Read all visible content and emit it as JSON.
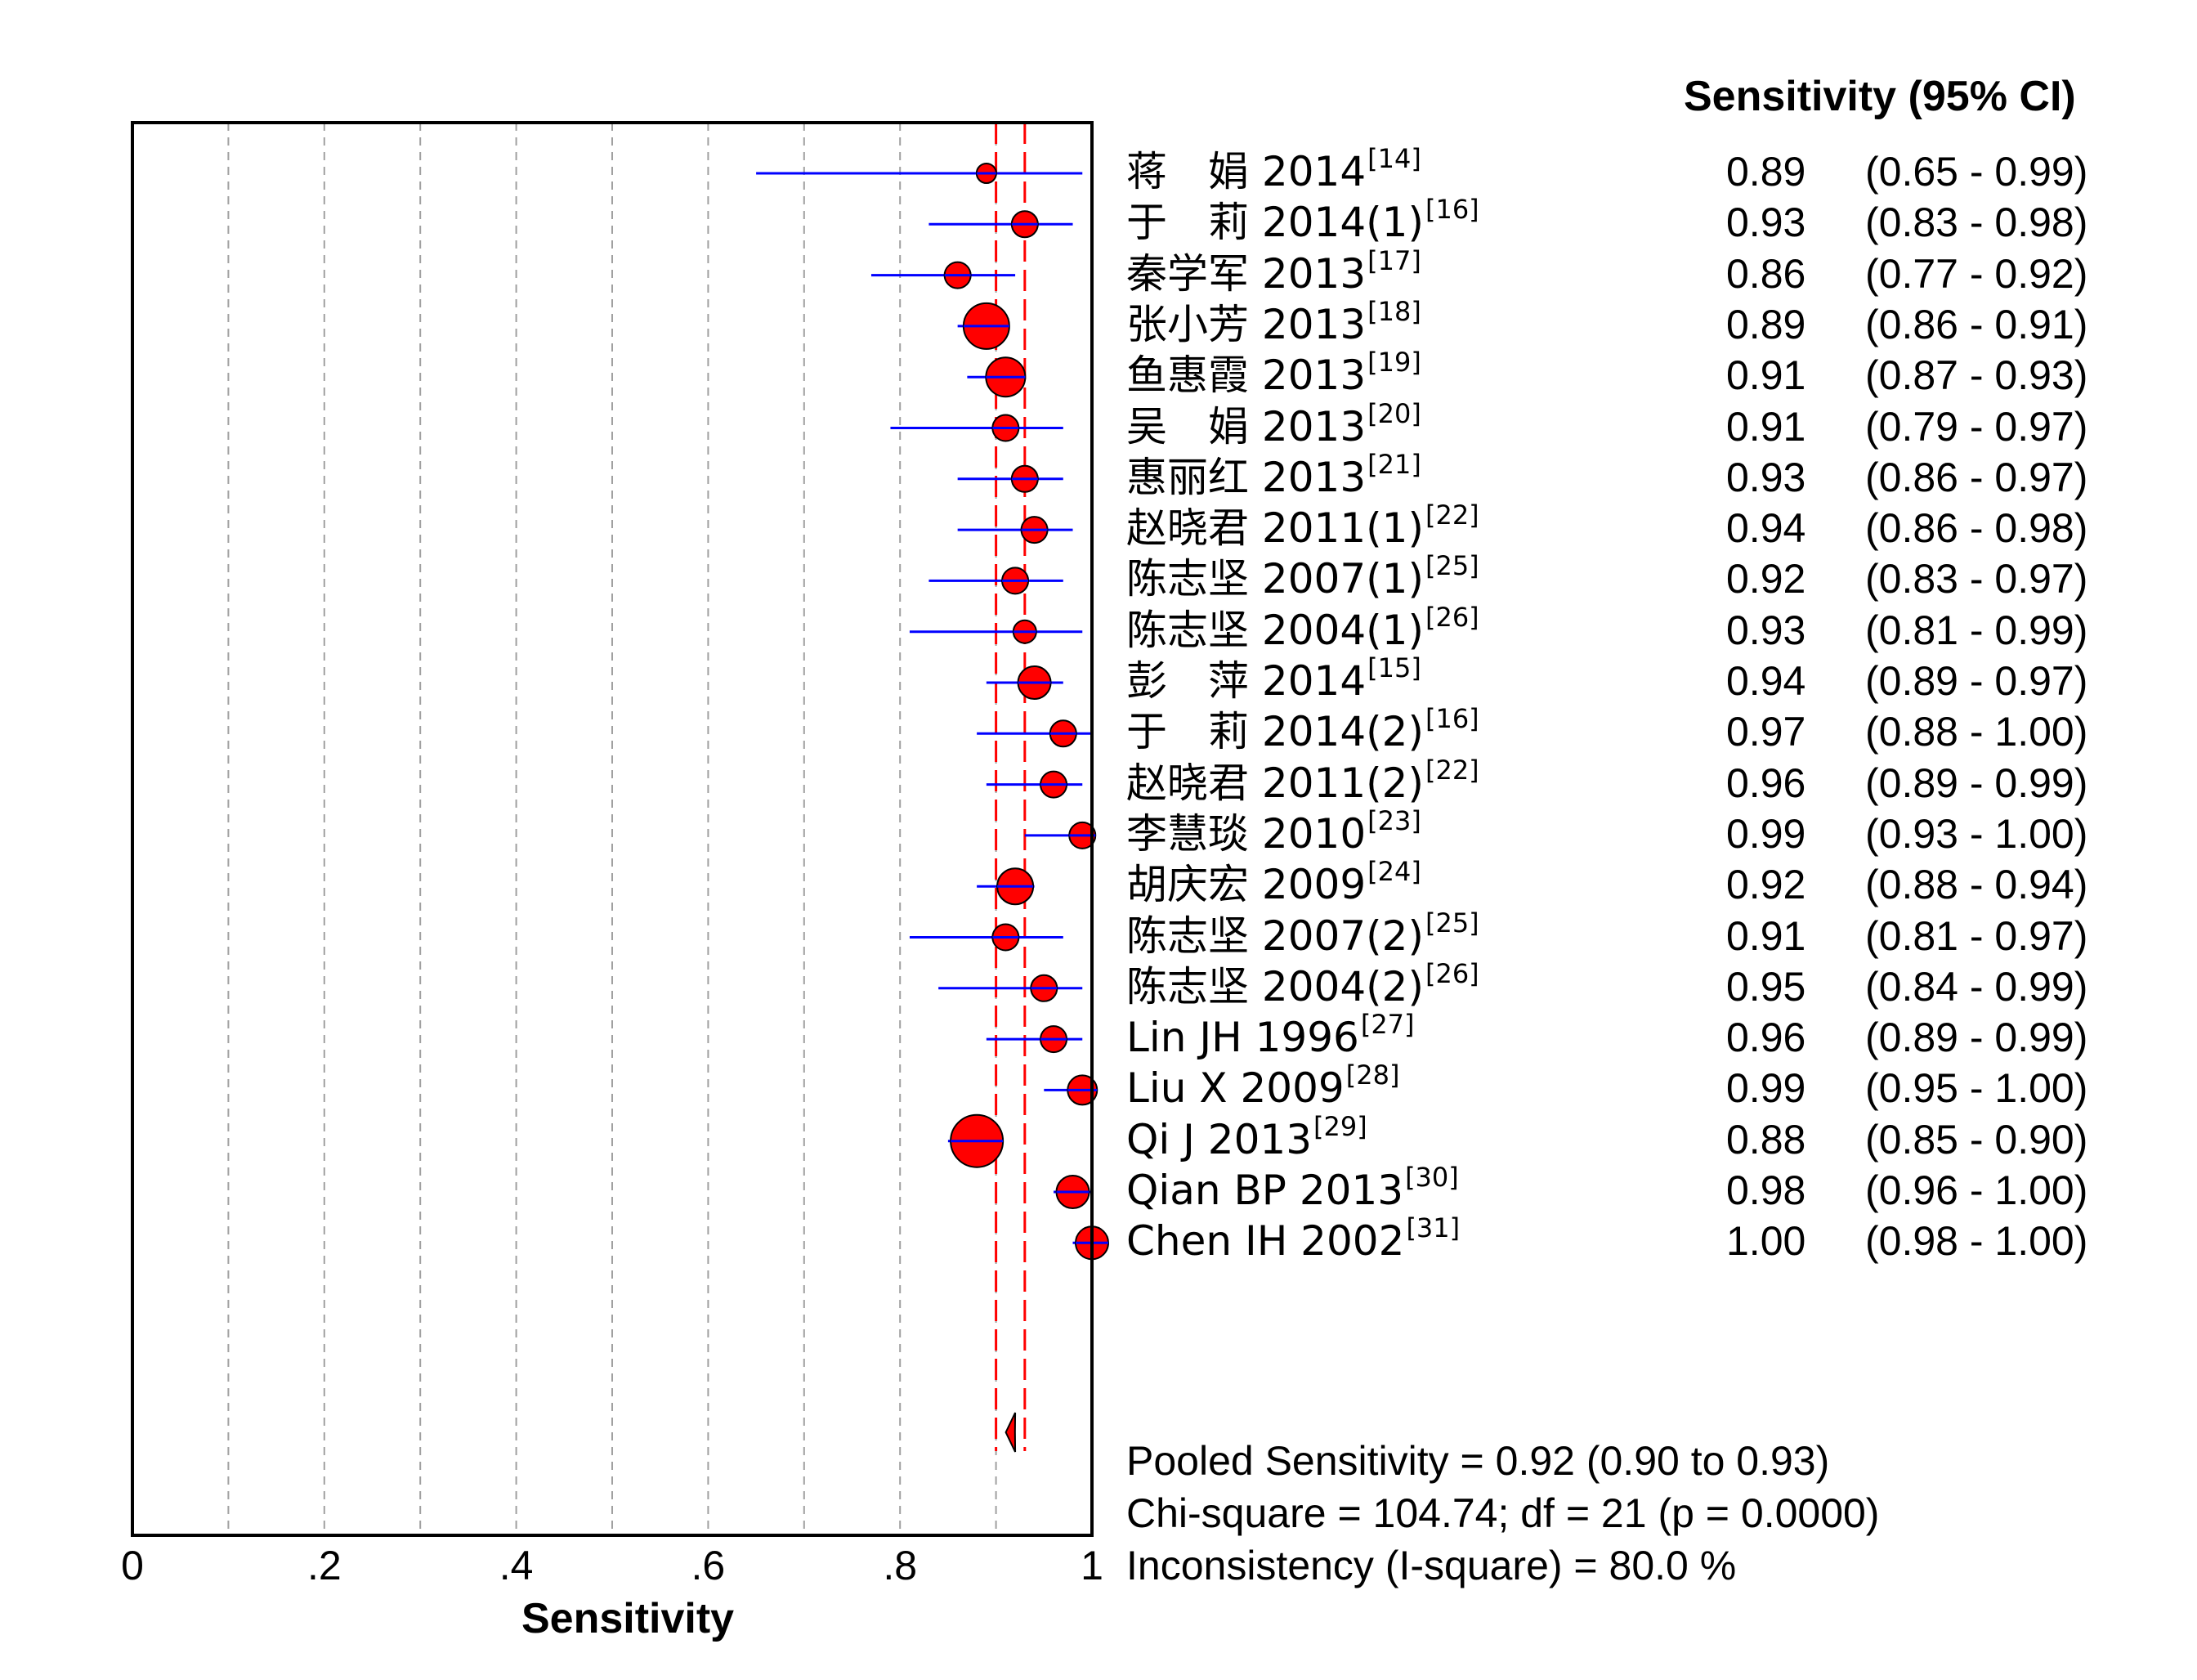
{
  "chart_data": {
    "type": "forest",
    "xlabel": "Sensitivity",
    "xlim": [
      0,
      1
    ],
    "xticks": [
      "0",
      ".2",
      ".4",
      ".6",
      ".8",
      "1"
    ],
    "column_header": "Sensitivity (95% CI)",
    "studies": [
      {
        "name": "蒋　娟 2014",
        "ref": "[14]",
        "value": "0.89",
        "ci_text": "(0.65 - 0.99)",
        "est": 0.89,
        "lo": 0.65,
        "hi": 0.99,
        "weight": 1
      },
      {
        "name": "于　莉 2014(1)",
        "ref": "[16]",
        "value": "0.93",
        "ci_text": "(0.83 - 0.98)",
        "est": 0.93,
        "lo": 0.83,
        "hi": 0.98,
        "weight": 2
      },
      {
        "name": "秦学军 2013",
        "ref": "[17]",
        "value": "0.86",
        "ci_text": "(0.77 - 0.92)",
        "est": 0.86,
        "lo": 0.77,
        "hi": 0.92,
        "weight": 2
      },
      {
        "name": "张小芳 2013",
        "ref": "[18]",
        "value": "0.89",
        "ci_text": "(0.86 - 0.91)",
        "est": 0.89,
        "lo": 0.86,
        "hi": 0.91,
        "weight": 5
      },
      {
        "name": "鱼惠霞 2013",
        "ref": "[19]",
        "value": "0.91",
        "ci_text": "(0.87 - 0.93)",
        "est": 0.91,
        "lo": 0.87,
        "hi": 0.93,
        "weight": 4
      },
      {
        "name": "吴　娟 2013",
        "ref": "[20]",
        "value": "0.91",
        "ci_text": "(0.79 - 0.97)",
        "est": 0.91,
        "lo": 0.79,
        "hi": 0.97,
        "weight": 2
      },
      {
        "name": "惠丽红 2013",
        "ref": "[21]",
        "value": "0.93",
        "ci_text": "(0.86 - 0.97)",
        "est": 0.93,
        "lo": 0.86,
        "hi": 0.97,
        "weight": 2
      },
      {
        "name": "赵晓君 2011(1)",
        "ref": "[22]",
        "value": "0.94",
        "ci_text": "(0.86 - 0.98)",
        "est": 0.94,
        "lo": 0.86,
        "hi": 0.98,
        "weight": 2
      },
      {
        "name": "陈志坚 2007(1)",
        "ref": "[25]",
        "value": "0.92",
        "ci_text": "(0.83 - 0.97)",
        "est": 0.92,
        "lo": 0.83,
        "hi": 0.97,
        "weight": 2
      },
      {
        "name": "陈志坚 2004(1)",
        "ref": "[26]",
        "value": "0.93",
        "ci_text": "(0.81 - 0.99)",
        "est": 0.93,
        "lo": 0.81,
        "hi": 0.99,
        "weight": 1.5
      },
      {
        "name": "彭　萍 2014",
        "ref": "[15]",
        "value": "0.94",
        "ci_text": "(0.89 - 0.97)",
        "est": 0.94,
        "lo": 0.89,
        "hi": 0.97,
        "weight": 3
      },
      {
        "name": "于　莉 2014(2)",
        "ref": "[16]",
        "value": "0.97",
        "ci_text": "(0.88 - 1.00)",
        "est": 0.97,
        "lo": 0.88,
        "hi": 1.0,
        "weight": 2
      },
      {
        "name": "赵晓君 2011(2)",
        "ref": "[22]",
        "value": "0.96",
        "ci_text": "(0.89 - 0.99)",
        "est": 0.96,
        "lo": 0.89,
        "hi": 0.99,
        "weight": 2
      },
      {
        "name": "李慧琰 2010",
        "ref": "[23]",
        "value": "0.99",
        "ci_text": "(0.93 - 1.00)",
        "est": 0.99,
        "lo": 0.93,
        "hi": 1.0,
        "weight": 2
      },
      {
        "name": "胡庆宏 2009",
        "ref": "[24]",
        "value": "0.92",
        "ci_text": "(0.88 - 0.94)",
        "est": 0.92,
        "lo": 0.88,
        "hi": 0.94,
        "weight": 3.5
      },
      {
        "name": "陈志坚 2007(2)",
        "ref": "[25]",
        "value": "0.91",
        "ci_text": "(0.81 - 0.97)",
        "est": 0.91,
        "lo": 0.81,
        "hi": 0.97,
        "weight": 2
      },
      {
        "name": "陈志坚 2004(2)",
        "ref": "[26]",
        "value": "0.95",
        "ci_text": "(0.84 - 0.99)",
        "est": 0.95,
        "lo": 0.84,
        "hi": 0.99,
        "weight": 2
      },
      {
        "name": "Lin JH 1996",
        "ref": "[27]",
        "value": "0.96",
        "ci_text": "(0.89 - 0.99)",
        "est": 0.96,
        "lo": 0.89,
        "hi": 0.99,
        "weight": 2
      },
      {
        "name": "Liu X 2009",
        "ref": "[28]",
        "value": "0.99",
        "ci_text": "(0.95 - 1.00)",
        "est": 0.99,
        "lo": 0.95,
        "hi": 1.0,
        "weight": 2.5
      },
      {
        "name": "Qi J 2013",
        "ref": "[29]",
        "value": "0.88",
        "ci_text": "(0.85 - 0.90)",
        "est": 0.88,
        "lo": 0.85,
        "hi": 0.9,
        "weight": 6
      },
      {
        "name": "Qian BP 2013",
        "ref": "[30]",
        "value": "0.98",
        "ci_text": "(0.96 - 1.00)",
        "est": 0.98,
        "lo": 0.96,
        "hi": 1.0,
        "weight": 3
      },
      {
        "name": "Chen IH 2002",
        "ref": "[31]",
        "value": "1.00",
        "ci_text": "(0.98 - 1.00)",
        "est": 1.0,
        "lo": 0.98,
        "hi": 1.0,
        "weight": 3
      }
    ],
    "pooled": {
      "est": 0.92,
      "lo": 0.9,
      "hi": 0.93
    },
    "stats": [
      "Pooled Sensitivity = 0.92 (0.90 to 0.93)",
      "Chi-square = 104.74; df =  21 (p = 0.0000)",
      "Inconsistency (I-square) = 80.0 %"
    ],
    "colors": {
      "ci_line": "#0000ff",
      "marker": "#ff0000",
      "pooled_line": "#ff0000",
      "grid": "#a0a0a0",
      "frame": "#000000"
    }
  }
}
